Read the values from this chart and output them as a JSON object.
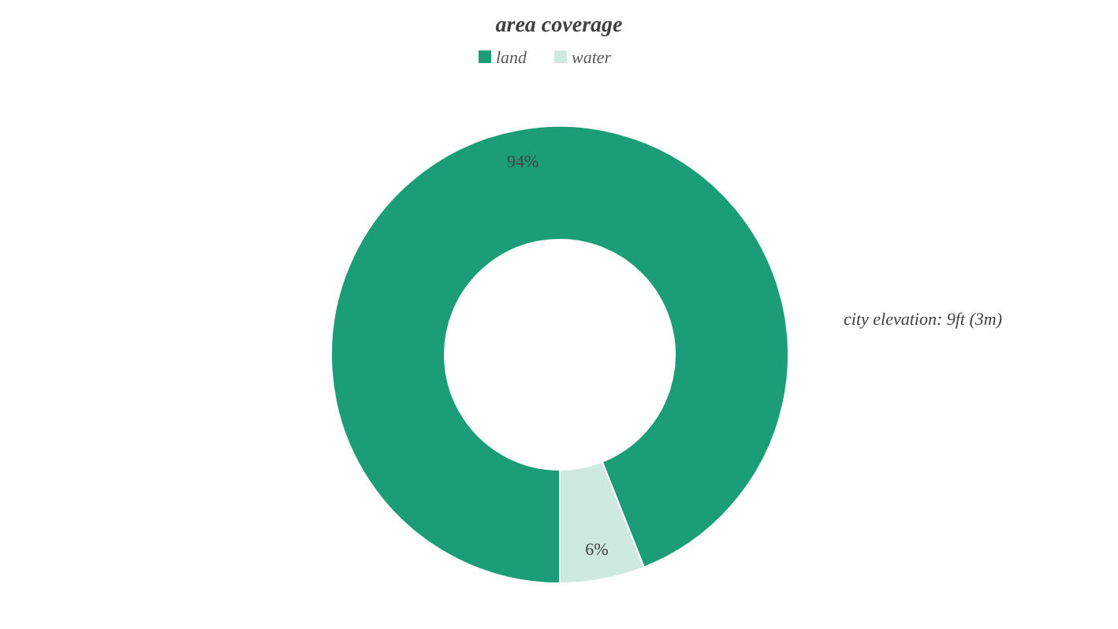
{
  "chart_data": {
    "type": "donut",
    "title": "area coverage",
    "categories": [
      "land",
      "water"
    ],
    "values": [
      94,
      6
    ],
    "colors": [
      "#1b9e77",
      "#cfe8e0"
    ],
    "value_labels": [
      "94%",
      "6%"
    ],
    "legend": "top",
    "annotations": [
      "city elevation: 9ft (3m)"
    ]
  }
}
